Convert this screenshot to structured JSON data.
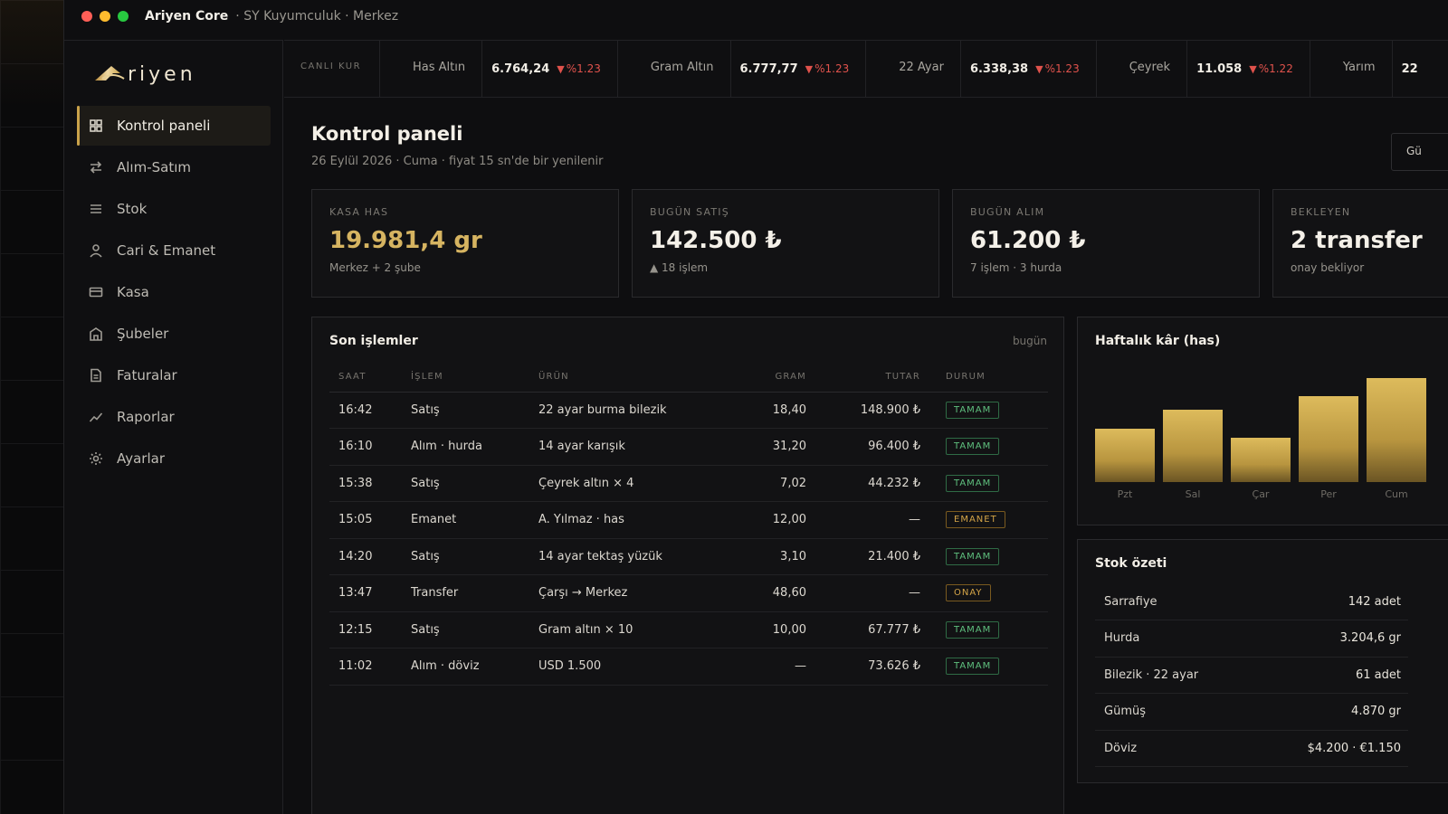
{
  "window": {
    "title": "Ariyen Core",
    "subtitle": "· SY Kuyumculuk · Merkez"
  },
  "brand": {
    "logo_text": "Ariyen",
    "accent": "#c9a24a"
  },
  "sidebar": {
    "items": [
      {
        "label": "Kontrol paneli",
        "icon": "grid-icon",
        "active": true
      },
      {
        "label": "Alım-Satım",
        "icon": "swap-icon",
        "active": false
      },
      {
        "label": "Stok",
        "icon": "list-icon",
        "active": false
      },
      {
        "label": "Cari & Emanet",
        "icon": "user-icon",
        "active": false
      },
      {
        "label": "Kasa",
        "icon": "card-icon",
        "active": false
      },
      {
        "label": "Şubeler",
        "icon": "building-icon",
        "active": false
      },
      {
        "label": "Faturalar",
        "icon": "document-icon",
        "active": false
      },
      {
        "label": "Raporlar",
        "icon": "trend-icon",
        "active": false
      },
      {
        "label": "Ayarlar",
        "icon": "gear-icon",
        "active": false
      }
    ]
  },
  "ticker": {
    "label": "CANLI KUR",
    "items": [
      {
        "name": "Has Altın",
        "value": "6.764,24",
        "change": "%1.23",
        "direction": "down"
      },
      {
        "name": "Gram Altın",
        "value": "6.777,77",
        "change": "%1.23",
        "direction": "down"
      },
      {
        "name": "22 Ayar",
        "value": "6.338,38",
        "change": "%1.23",
        "direction": "down"
      },
      {
        "name": "Çeyrek",
        "value": "11.058",
        "change": "%1.22",
        "direction": "down"
      },
      {
        "name": "Yarım",
        "value": "22",
        "change": "",
        "direction": "down"
      }
    ],
    "down_color": "#e0524c"
  },
  "header": {
    "title": "Kontrol paneli",
    "subtitle": "26 Eylül 2026 · Cuma · fiyat 15 sn'de bir yenilenir",
    "button_label": "Gü"
  },
  "stats": [
    {
      "label": "KASA HAS",
      "value": "19.981,4 gr",
      "note": "Merkez + 2 şube",
      "highlight": true
    },
    {
      "label": "BUGÜN SATIŞ",
      "value": "142.500 ₺",
      "note": "▲ 18 işlem",
      "highlight": false
    },
    {
      "label": "BUGÜN ALIM",
      "value": "61.200 ₺",
      "note": "7 işlem · 3 hurda",
      "highlight": false
    },
    {
      "label": "BEKLEYEN",
      "value": "2 transfer",
      "note": "onay bekliyor",
      "highlight": false
    }
  ],
  "transactions": {
    "title": "Son işlemler",
    "aside": "bugün",
    "columns": [
      "SAAT",
      "İŞLEM",
      "ÜRÜN",
      "GRAM",
      "TUTAR",
      "DURUM"
    ],
    "rows": [
      {
        "time": "16:42",
        "type": "Satış",
        "product": "22 ayar burma bilezik",
        "gram": "18,40",
        "amount": "148.900 ₺",
        "status": "TAMAM",
        "status_kind": "ok"
      },
      {
        "time": "16:10",
        "type": "Alım · hurda",
        "product": "14 ayar karışık",
        "gram": "31,20",
        "amount": "96.400 ₺",
        "status": "TAMAM",
        "status_kind": "ok"
      },
      {
        "time": "15:38",
        "type": "Satış",
        "product": "Çeyrek altın × 4",
        "gram": "7,02",
        "amount": "44.232 ₺",
        "status": "TAMAM",
        "status_kind": "ok"
      },
      {
        "time": "15:05",
        "type": "Emanet",
        "product": "A. Yılmaz · has",
        "gram": "12,00",
        "amount": "—",
        "status": "EMANET",
        "status_kind": "warn"
      },
      {
        "time": "14:20",
        "type": "Satış",
        "product": "14 ayar tektaş yüzük",
        "gram": "3,10",
        "amount": "21.400 ₺",
        "status": "TAMAM",
        "status_kind": "ok"
      },
      {
        "time": "13:47",
        "type": "Transfer",
        "product": "Çarşı → Merkez",
        "gram": "48,60",
        "amount": "—",
        "status": "ONAY",
        "status_kind": "warn"
      },
      {
        "time": "12:15",
        "type": "Satış",
        "product": "Gram altın × 10",
        "gram": "10,00",
        "amount": "67.777 ₺",
        "status": "TAMAM",
        "status_kind": "ok"
      },
      {
        "time": "11:02",
        "type": "Alım · döviz",
        "product": "USD 1.500",
        "gram": "—",
        "amount": "73.626 ₺",
        "status": "TAMAM",
        "status_kind": "ok"
      }
    ]
  },
  "weekly": {
    "title": "Haftalık kâr (has)",
    "chart_data": {
      "type": "bar",
      "title": "Haftalık kâr (has)",
      "categories": [
        "Pzt",
        "Sal",
        "Çar",
        "Per",
        "Cum"
      ],
      "values": [
        52,
        70,
        43,
        83,
        101
      ],
      "ylim": [
        0,
        105
      ],
      "grid": false,
      "legend": "none"
    }
  },
  "stock": {
    "title": "Stok özeti",
    "rows": [
      {
        "name": "Sarrafiye",
        "value": "142 adet"
      },
      {
        "name": "Hurda",
        "value": "3.204,6 gr"
      },
      {
        "name": "Bilezik · 22 ayar",
        "value": "61 adet"
      },
      {
        "name": "Gümüş",
        "value": "4.870 gr"
      },
      {
        "name": "Döviz",
        "value": "$4.200 · €1.150"
      }
    ]
  }
}
